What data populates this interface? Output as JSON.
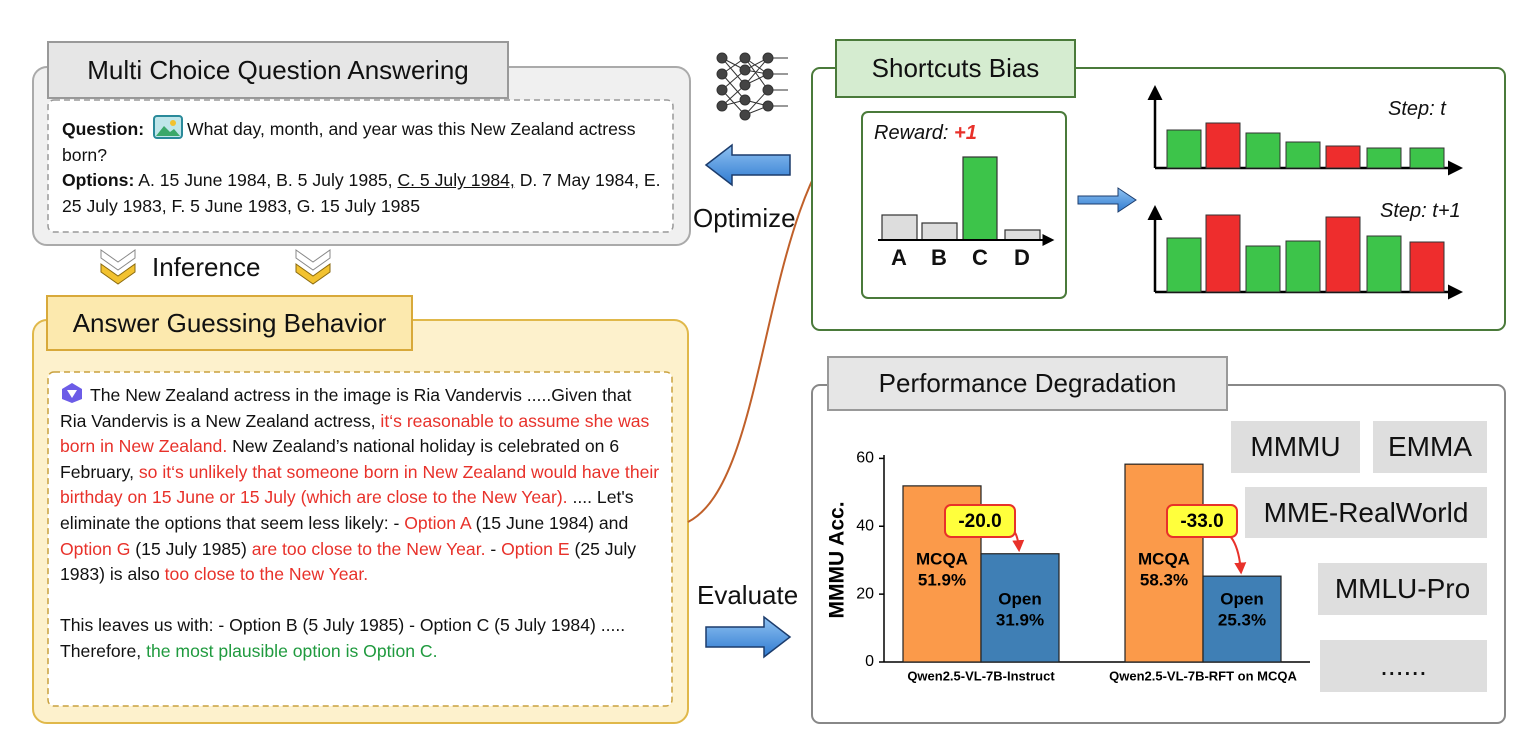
{
  "mcqa": {
    "title": "Multi Choice Question Answering",
    "question_label": "Question:",
    "question": "What day, month, and year was this New Zealand actress born?",
    "options_label": "Options:",
    "options_before": "A. 15 June 1984, B. 5 July 1985, ",
    "options_underlined": "C. 5 July 1984,",
    "options_after": " D. 7 May 1984, E. 25 July 1983, F. 5 June 1983, G. 15 July 1985"
  },
  "inference": "Inference",
  "guessing": {
    "title": "Answer Guessing Behavior",
    "paragraphs": [
      [
        {
          "text": "The New Zealand actress in the image is Ria Vandervis .....Given that Ria Vandervis is a New Zealand actress, ",
          "color": "#111111"
        },
        {
          "text": "it‘s reasonable to assume she was born in New Zealand.",
          "color": "#e8312a"
        },
        {
          "text": " New Zealand’s national holiday is celebrated on 6 February, ",
          "color": "#111111"
        },
        {
          "text": "so it‘s unlikely that someone born in New Zealand would have their birthday on 15 June or 15 July (which are close to the New Year).",
          "color": "#e8312a"
        },
        {
          "text": " .... Let's eliminate the options that seem less likely: - ",
          "color": "#111111"
        },
        {
          "text": "Option A",
          "color": "#e8312a"
        },
        {
          "text": " (15 June 1984) and ",
          "color": "#111111"
        },
        {
          "text": "Option G",
          "color": "#e8312a"
        },
        {
          "text": " (15 July 1985) ",
          "color": "#111111"
        },
        {
          "text": "are too close to the New Year.",
          "color": "#e8312a"
        },
        {
          "text": " - ",
          "color": "#111111"
        },
        {
          "text": "Option E",
          "color": "#e8312a"
        },
        {
          "text": " (25 July 1983) is also ",
          "color": "#111111"
        },
        {
          "text": "too close to the New Year.",
          "color": "#e8312a"
        }
      ],
      [
        {
          "text": "This leaves us with: - Option B (5 July 1985) - Option C (5 July 1984) ..... Therefore, ",
          "color": "#111111"
        },
        {
          "text": "the most plausible option is Option C.",
          "color": "#1f9a3e"
        }
      ]
    ]
  },
  "optimize": "Optimize",
  "evaluate": "Evaluate",
  "shortcuts": {
    "title": "Shortcuts Bias",
    "reward_label": "Reward:",
    "reward_value": "+1",
    "options": [
      "A",
      "B",
      "C",
      "D"
    ],
    "step_1": "Step: t",
    "step_2": "Step: t+1"
  },
  "degradation": {
    "title": "Performance Degradation",
    "chart": {
      "type": "bar",
      "y_label": "MMMU Acc.",
      "categories": [
        "Qwen2.5-VL-7B-Instruct",
        "Qwen2.5-VL-7B-RFT on MCQA"
      ],
      "series": [
        {
          "name": "MCQA",
          "color": "#fb9a4a",
          "values": [
            51.9,
            58.3
          ],
          "value_labels": [
            "51.9%",
            "58.3%"
          ]
        },
        {
          "name": "Open",
          "color": "#3f7fb5",
          "values": [
            31.9,
            25.3
          ],
          "value_labels": [
            "31.9%",
            "25.3%"
          ]
        }
      ],
      "deltas": {
        "values": [
          -20.0,
          -33.0
        ],
        "value_labels": [
          "-20.0",
          "-33.0"
        ]
      },
      "ylim": [
        0,
        61
      ],
      "yticks": [
        0,
        20,
        40,
        60
      ]
    },
    "benchmarks": [
      "MMMU",
      "EMMA",
      "MME-RealWorld",
      "MMLU-Pro",
      "......"
    ]
  }
}
